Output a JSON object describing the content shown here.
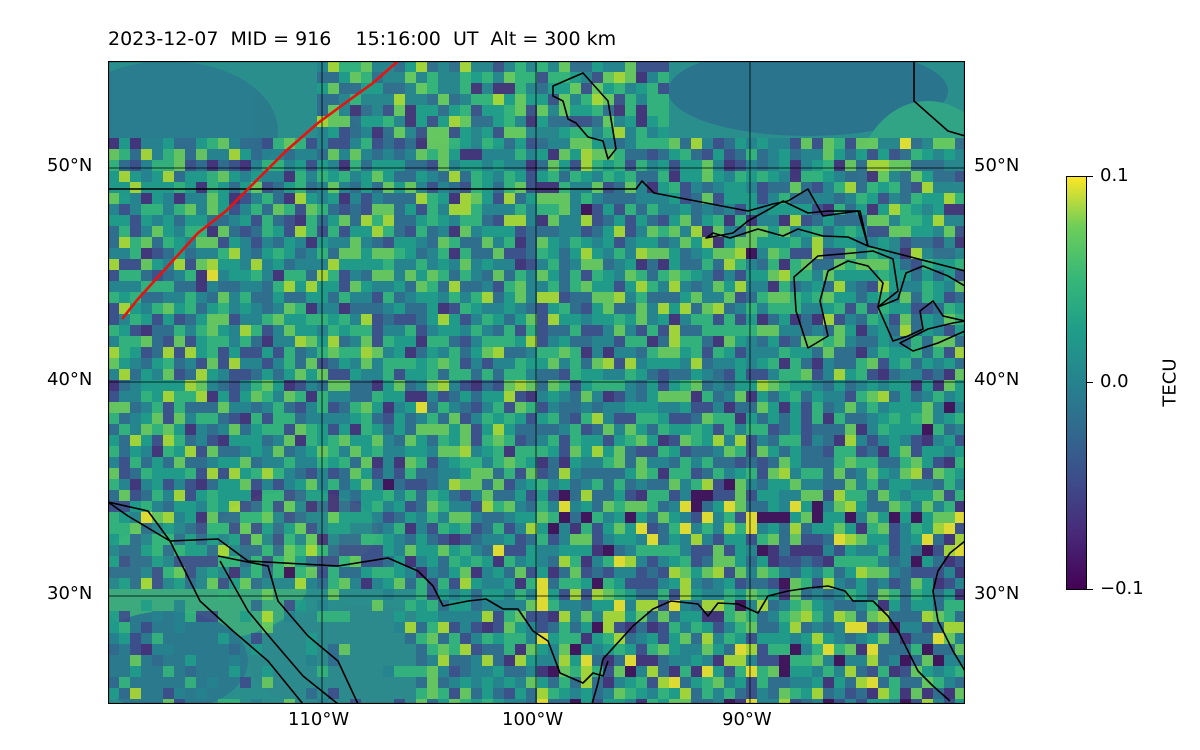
{
  "title": "2023-12-07  MID = 916    15:16:00  UT  Alt = 300 km",
  "map": {
    "lat_labels": [
      "50°N",
      "40°N",
      "30°N"
    ],
    "lon_labels": [
      "110°W",
      "100°W",
      "90°W"
    ],
    "colors": {
      "background_low": "#287d8e",
      "background_mid": "#2a9a8a",
      "coastline": "#000000",
      "terminator": "#e8120e"
    }
  },
  "colorbar": {
    "label": "TECU",
    "ticks": [
      "0.1",
      "0.0",
      "−0.1"
    ],
    "colormap": "viridis",
    "range": [
      -0.1,
      0.1
    ]
  }
}
